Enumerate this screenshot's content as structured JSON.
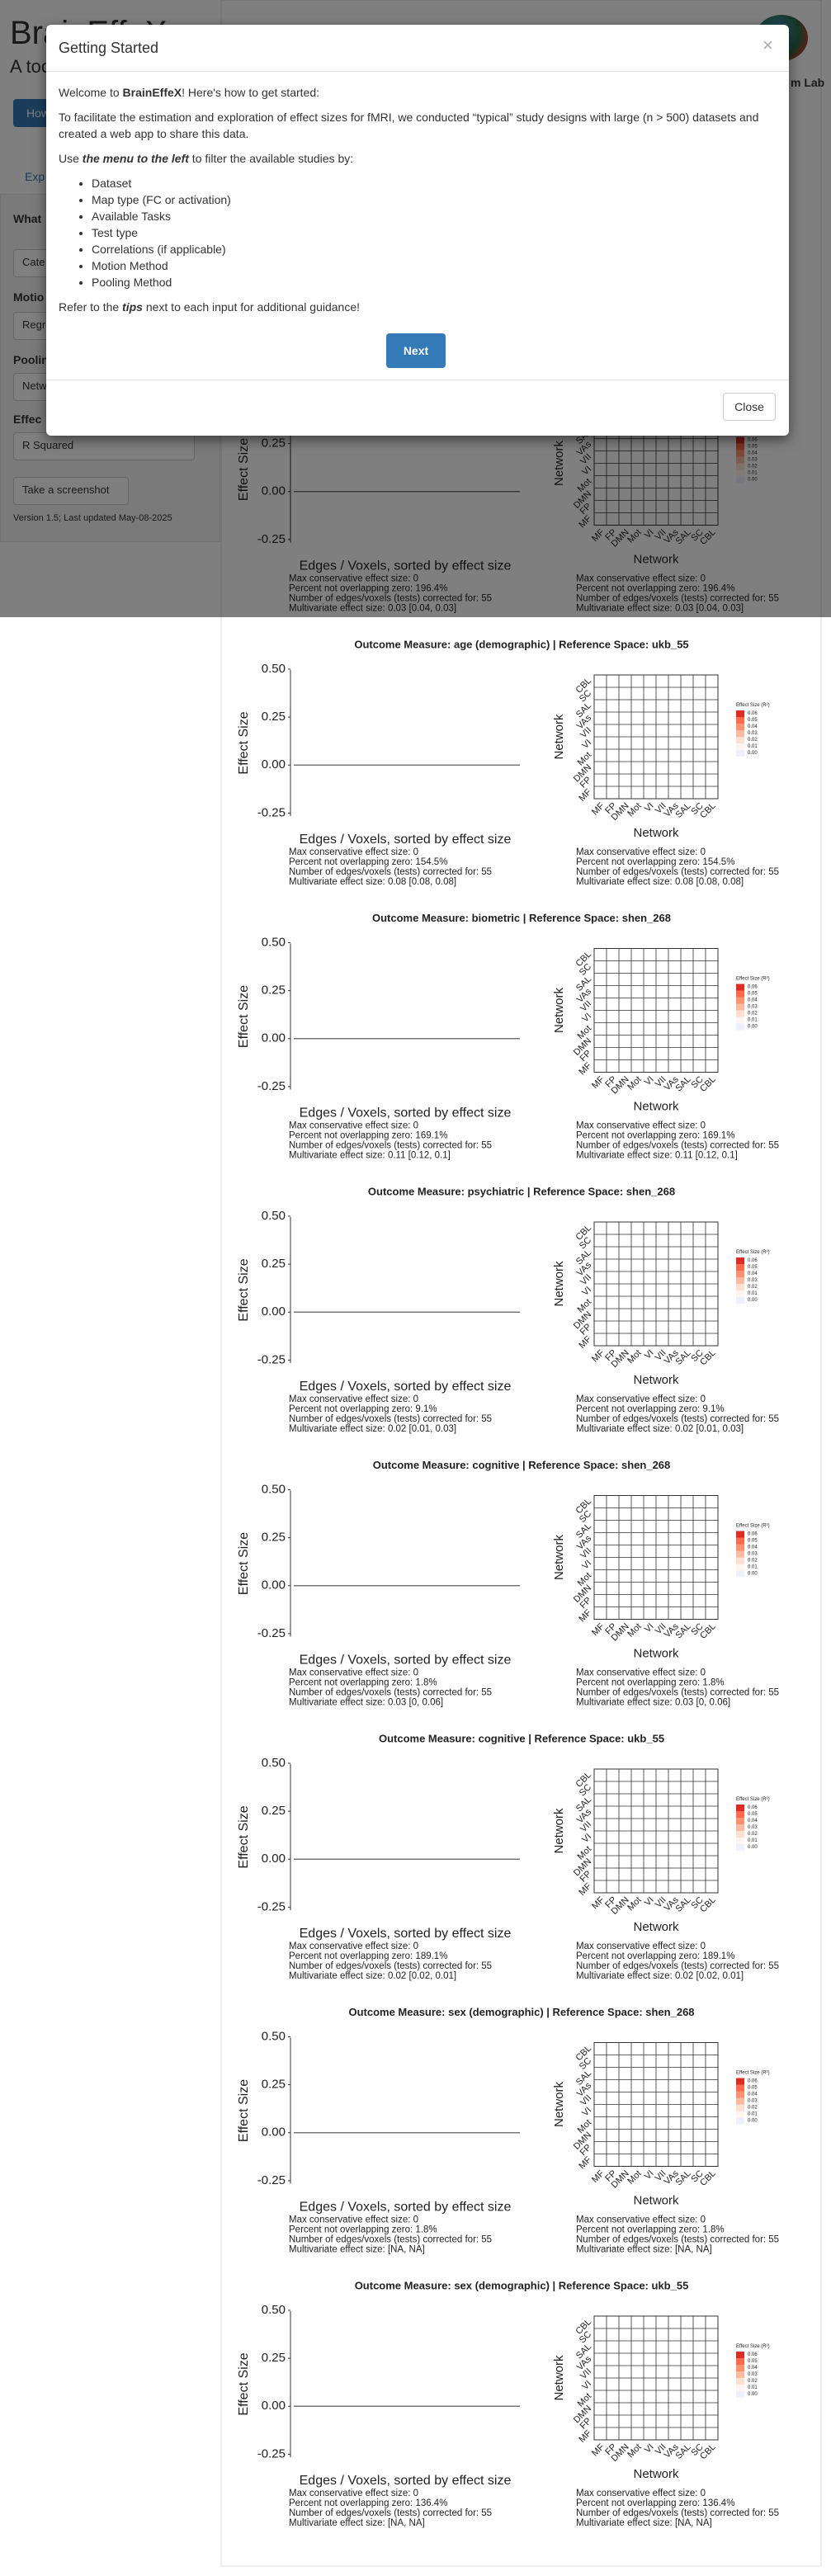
{
  "header": {
    "title": "BrainEffeX",
    "subtitle": "A too",
    "lab": "m Lab"
  },
  "sidebar": {
    "button": "How",
    "tab": "Exp",
    "what": "What",
    "category": "Cate",
    "motion": "Motio",
    "motion_select": "Regr",
    "pooling": "Poolin",
    "pooling_select": "Netw",
    "effect": "Effec",
    "effect_select": "R Squared",
    "screenshot": "Take a screenshot",
    "version": "Version 1.5; Last updated May-08-2025"
  },
  "modal": {
    "title": "Getting Started",
    "close_x": "×",
    "welcome": [
      "Welcome to ",
      "BrainEffeX",
      "! Here's how to get started:"
    ],
    "intro": "To facilitate the estimation and exploration of effect sizes for fMRI, we conducted “typical” study designs with large (n > 500) datasets and created a web app to share this data.",
    "use": [
      "Use ",
      "the menu to the left",
      " to filter the available studies by:"
    ],
    "items": [
      "Dataset",
      "Map type (FC or activation)",
      "Available Tasks",
      "Test type",
      "Correlations (if applicable)",
      "Motion Method",
      "Pooling Method"
    ],
    "refer": [
      "Refer to the ",
      "tips",
      " next to each input for additional guidance!"
    ],
    "next": "Next",
    "close": "Close"
  },
  "plots": {
    "y_label": "Effect Size",
    "x_label": "Edges / Voxels, sorted by effect size",
    "network_label": "Network",
    "networks": [
      "MF",
      "FP",
      "DMN",
      "Mot",
      "VI",
      "VII",
      "VAs",
      "SAL",
      "SC",
      "CBL"
    ],
    "yticks": [
      {
        "value": 0.5,
        "label": "0.50"
      },
      {
        "value": 0.25,
        "label": "0.25"
      },
      {
        "value": 0,
        "label": "0.00"
      },
      {
        "value": -0.25,
        "label": "-0.25"
      }
    ],
    "ylim": [
      -0.3,
      0.53
    ],
    "legend_title": "Effect Size (R²)",
    "legend_ticks": [
      {
        "value": 0.06,
        "label": "0.06"
      },
      {
        "value": 0.05,
        "label": "0.05"
      },
      {
        "value": 0.04,
        "label": "0.04"
      },
      {
        "value": 0.03,
        "label": "0.03"
      },
      {
        "value": 0.02,
        "label": "0.02"
      },
      {
        "value": 0.01,
        "label": "0.01"
      },
      {
        "value": 0,
        "label": "0.00"
      }
    ],
    "legend_colors": [
      "#de2d26",
      "#fb6a4a",
      "#fc9272",
      "#fcbba1",
      "#fee0d2",
      "#fff5f0",
      "#eef0ff"
    ],
    "panels": [
      {
        "stats": [
          "Max conservative effect size: 0",
          "Percent not overlapping zero: 196.4%",
          "Number of edges/voxels (tests) corrected for: 55",
          "Multivariate effect size: 0.03 [0.04, 0.03]"
        ]
      },
      {
        "title": "Outcome Measure: age (demographic)   |   Reference Space: ukb_55",
        "stats": [
          "Max conservative effect size: 0",
          "Percent not overlapping zero: 154.5%",
          "Number of edges/voxels (tests) corrected for: 55",
          "Multivariate effect size: 0.08 [0.08, 0.08]"
        ]
      },
      {
        "title": "Outcome Measure: biometric   |   Reference Space: shen_268",
        "stats": [
          "Max conservative effect size: 0",
          "Percent not overlapping zero: 169.1%",
          "Number of edges/voxels (tests) corrected for: 55",
          "Multivariate effect size: 0.11 [0.12, 0.1]"
        ]
      },
      {
        "title": "Outcome Measure: psychiatric   |   Reference Space: shen_268",
        "stats": [
          "Max conservative effect size: 0",
          "Percent not overlapping zero: 9.1%",
          "Number of edges/voxels (tests) corrected for: 55",
          "Multivariate effect size: 0.02 [0.01, 0.03]"
        ]
      },
      {
        "title": "Outcome Measure: cognitive   |   Reference Space: shen_268",
        "stats": [
          "Max conservative effect size: 0",
          "Percent not overlapping zero: 1.8%",
          "Number of edges/voxels (tests) corrected for: 55",
          "Multivariate effect size: 0.03 [0, 0.06]"
        ]
      },
      {
        "title": "Outcome Measure: cognitive   |   Reference Space: ukb_55",
        "stats": [
          "Max conservative effect size: 0",
          "Percent not overlapping zero: 189.1%",
          "Number of edges/voxels (tests) corrected for: 55",
          "Multivariate effect size: 0.02 [0.02, 0.01]"
        ]
      },
      {
        "title": "Outcome Measure: sex (demographic)   |   Reference Space: shen_268",
        "stats": [
          "Max conservative effect size: 0",
          "Percent not overlapping zero: 1.8%",
          "Number of edges/voxels (tests) corrected for: 55",
          "Multivariate effect size:  [NA, NA]"
        ]
      },
      {
        "title": "Outcome Measure: sex (demographic)   |   Reference Space: ukb_55",
        "stats": [
          "Max conservative effect size: 0",
          "Percent not overlapping zero: 136.4%",
          "Number of edges/voxels (tests) corrected for: 55",
          "Multivariate effect size:  [NA, NA]"
        ]
      }
    ]
  }
}
